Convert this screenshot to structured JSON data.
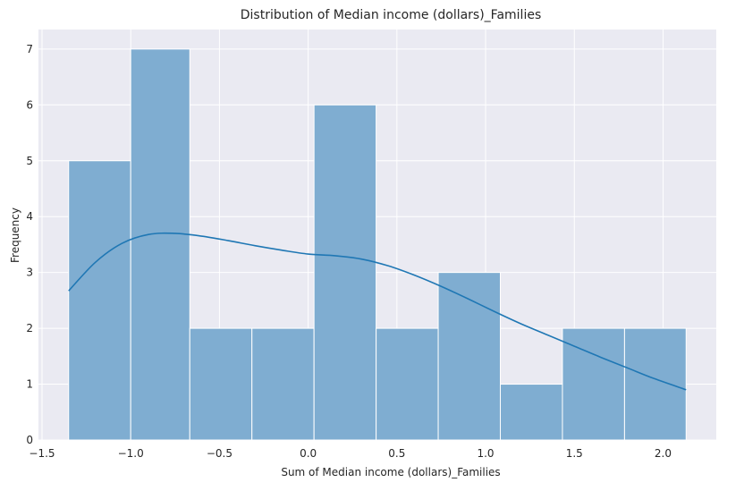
{
  "chart_data": {
    "type": "bar",
    "subtype": "histogram-with-kde",
    "title": "Distribution of Median income (dollars)_Families",
    "xlabel": "Sum of Median income (dollars)_Families",
    "ylabel": "Frequency",
    "xlim": [
      -1.52,
      2.3
    ],
    "ylim": [
      0,
      7.35
    ],
    "xticks": [
      -1.5,
      -1.0,
      -0.5,
      0.0,
      0.5,
      1.0,
      1.5,
      2.0
    ],
    "xtick_labels": [
      "−1.5",
      "−1.0",
      "−0.5",
      "0.0",
      "0.5",
      "1.0",
      "1.5",
      "2.0"
    ],
    "yticks": [
      0,
      1,
      2,
      3,
      4,
      5,
      6,
      7
    ],
    "ytick_labels": [
      "0",
      "1",
      "2",
      "3",
      "4",
      "5",
      "6",
      "7"
    ],
    "grid": true,
    "bins": [
      {
        "x0": -1.35,
        "x1": -1.0,
        "count": 5
      },
      {
        "x0": -1.0,
        "x1": -0.667,
        "count": 7
      },
      {
        "x0": -0.667,
        "x1": -0.317,
        "count": 2
      },
      {
        "x0": -0.317,
        "x1": 0.033,
        "count": 2
      },
      {
        "x0": 0.033,
        "x1": 0.383,
        "count": 6
      },
      {
        "x0": 0.383,
        "x1": 0.733,
        "count": 2
      },
      {
        "x0": 0.733,
        "x1": 1.083,
        "count": 3
      },
      {
        "x0": 1.083,
        "x1": 1.433,
        "count": 1
      },
      {
        "x0": 1.433,
        "x1": 1.783,
        "count": 2
      },
      {
        "x0": 1.783,
        "x1": 2.13,
        "count": 2
      }
    ],
    "kde": {
      "x": [
        -1.35,
        -1.2,
        -1.05,
        -0.9,
        -0.75,
        -0.6,
        -0.45,
        -0.3,
        -0.15,
        0.0,
        0.15,
        0.3,
        0.45,
        0.6,
        0.75,
        0.9,
        1.05,
        1.2,
        1.35,
        1.5,
        1.65,
        1.8,
        1.95,
        2.13
      ],
      "y": [
        2.67,
        3.18,
        3.52,
        3.68,
        3.7,
        3.65,
        3.57,
        3.48,
        3.4,
        3.33,
        3.3,
        3.24,
        3.12,
        2.95,
        2.75,
        2.53,
        2.3,
        2.08,
        1.88,
        1.68,
        1.48,
        1.29,
        1.1,
        0.9
      ]
    },
    "colors": {
      "bar_fill": "#7fadd1",
      "bar_edge": "#ffffff",
      "kde_line": "#1f77b4",
      "plot_bg": "#eaeaf2",
      "grid": "#ffffff"
    }
  }
}
